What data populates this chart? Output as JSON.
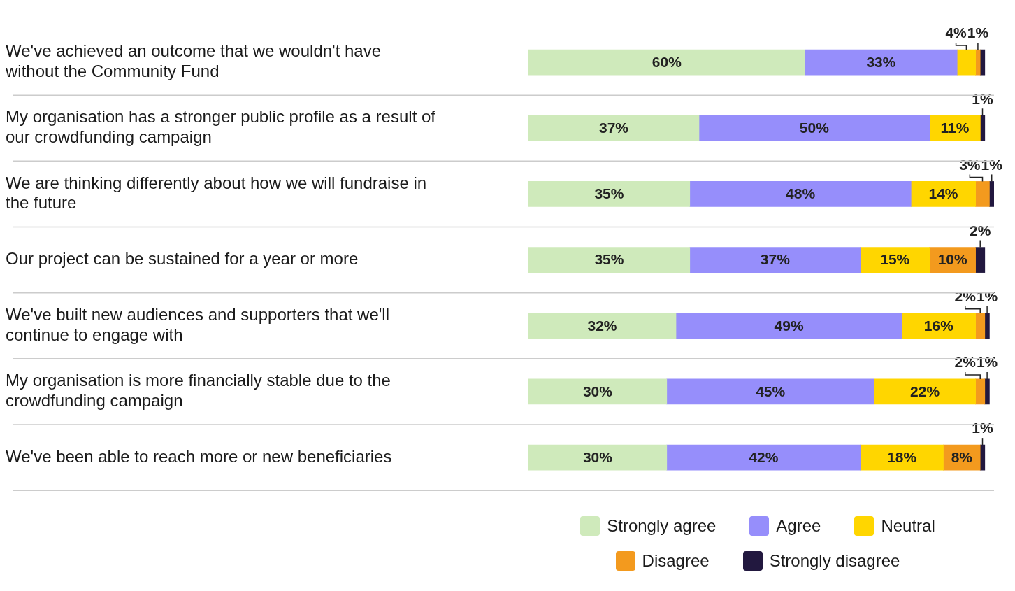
{
  "chart_data": {
    "type": "bar",
    "orientation": "horizontal",
    "stacked": true,
    "categories": [
      "We've achieved an outcome that we wouldn't have without the Community Fund",
      "My organisation has a stronger public profile as a result of our crowdfunding campaign",
      "We are thinking differently about how we will fundraise in the future",
      "Our project can be sustained for a year or more",
      "We've built new audiences and supporters that we'll continue to engage with",
      "My organisation is more financially stable due to the crowdfunding campaign",
      "We've been able to reach more or new beneficiaries"
    ],
    "series": [
      {
        "name": "Strongly agree",
        "color": "#cfeabb",
        "values": [
          60,
          37,
          35,
          35,
          32,
          30,
          30
        ],
        "value_labels": [
          "60%",
          "37%",
          "35%",
          "35%",
          "32%",
          "30%",
          "30%"
        ]
      },
      {
        "name": "Agree",
        "color": "#968efb",
        "values": [
          33,
          50,
          48,
          37,
          49,
          45,
          42
        ],
        "value_labels": [
          "33%",
          "50%",
          "48%",
          "37%",
          "49%",
          "45%",
          "42%"
        ]
      },
      {
        "name": "Neutral",
        "color": "#ffd600",
        "values": [
          4,
          11,
          14,
          15,
          16,
          22,
          18
        ],
        "value_labels": [
          "4%",
          "11%",
          "14%",
          "15%",
          "16%",
          "22%",
          "18%"
        ]
      },
      {
        "name": "Disagree",
        "color": "#f39a1e",
        "values": [
          1,
          0,
          3,
          10,
          2,
          2,
          8
        ],
        "value_labels": [
          "1%",
          null,
          "3%",
          "10%",
          "2%",
          "2%",
          "8%"
        ]
      },
      {
        "name": "Strongly disagree",
        "color": "#22183f",
        "values": [
          1,
          1,
          1,
          2,
          1,
          1,
          1
        ],
        "value_labels": [
          null,
          "1%",
          "1%",
          "2%",
          "1%",
          "1%",
          "1%"
        ]
      }
    ],
    "xlim": [
      0,
      101
    ],
    "tick_labels": "y",
    "legend": "bottom right"
  }
}
